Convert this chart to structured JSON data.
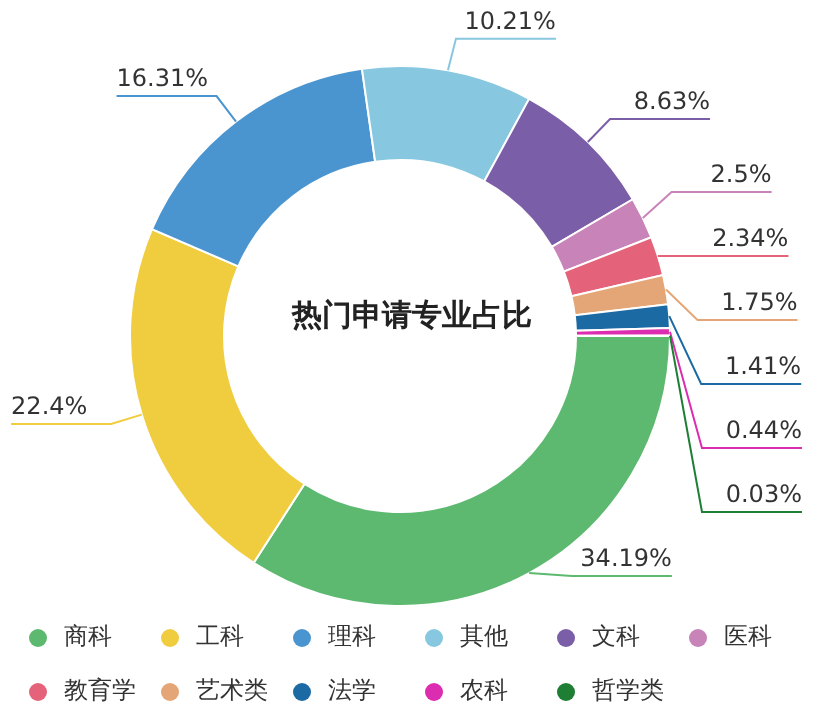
{
  "chart_data": {
    "type": "donut",
    "title": "热门申请专业占比",
    "categories": [
      "商科",
      "工科",
      "理科",
      "其他",
      "文科",
      "医科",
      "教育学",
      "艺术类",
      "法学",
      "农科",
      "哲学类"
    ],
    "values": [
      34.19,
      22.4,
      16.31,
      10.21,
      8.63,
      2.5,
      2.34,
      1.75,
      1.41,
      0.44,
      0.03
    ],
    "value_labels": [
      "34.19%",
      "22.4%",
      "16.31%",
      "10.21%",
      "8.63%",
      "2.5%",
      "2.34%",
      "1.75%",
      "1.41%",
      "0.44%",
      "0.03%"
    ],
    "colors": [
      "#5cb96f",
      "#f0cc3f",
      "#4a95d0",
      "#87c8e0",
      "#7b5ea8",
      "#c883b8",
      "#e5637a",
      "#e4a676",
      "#1c6aa3",
      "#dc2caf",
      "#1e7e34"
    ],
    "legend": "bottom"
  }
}
